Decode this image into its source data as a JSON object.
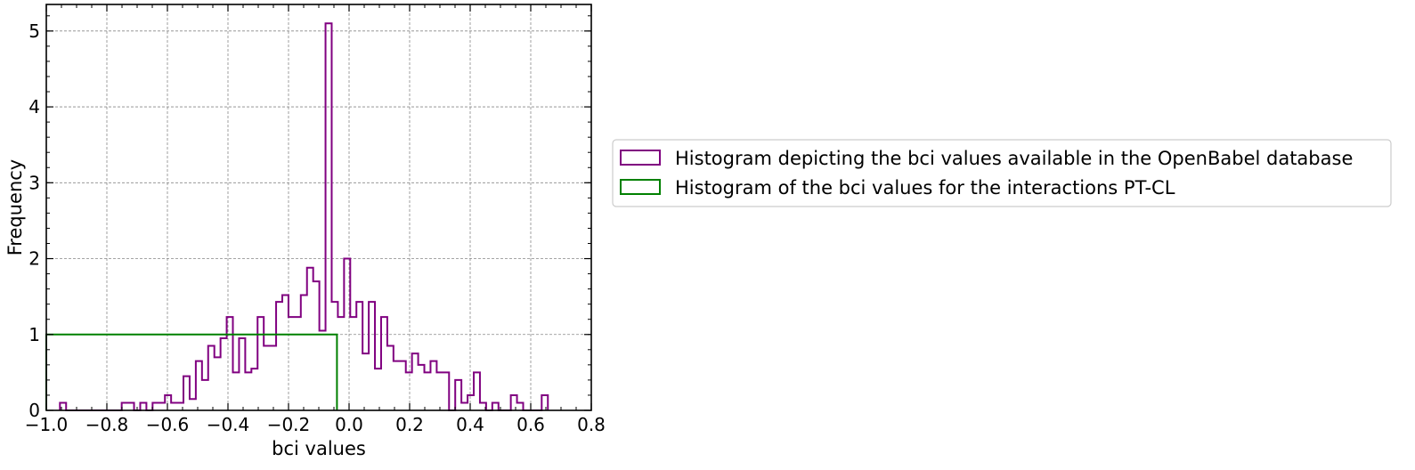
{
  "chart_data": {
    "type": "histogram",
    "title": "",
    "xlabel": "bci values",
    "ylabel": "Frequency",
    "xlim": [
      -1.0,
      0.8
    ],
    "ylim": [
      0,
      5.35
    ],
    "xticks": [
      -1.0,
      -0.8,
      -0.6,
      -0.4,
      -0.2,
      0.0,
      0.2,
      0.4,
      0.6,
      0.8
    ],
    "xtick_labels": [
      "−1.0",
      "−0.8",
      "−0.6",
      "−0.4",
      "−0.2",
      "0.0",
      "0.2",
      "0.4",
      "0.6",
      "0.8"
    ],
    "yticks": [
      0,
      1,
      2,
      3,
      4,
      5
    ],
    "ytick_labels": [
      "0",
      "1",
      "2",
      "3",
      "4",
      "5"
    ],
    "grid": true,
    "legend_position": "outside-right",
    "series": [
      {
        "name": "Histogram depicting the bci values available in the OpenBabel database",
        "color": "#800080",
        "histtype": "step",
        "bin_start": -0.955,
        "bin_width": 0.0204,
        "counts": [
          0.1,
          0,
          0,
          0,
          0,
          0,
          0,
          0,
          0,
          0,
          0.1,
          0.1,
          0,
          0.1,
          0,
          0.1,
          0.1,
          0.2,
          0.1,
          0.1,
          0.45,
          0.15,
          0.65,
          0.4,
          0.85,
          0.7,
          0.95,
          1.23,
          0.5,
          0.95,
          0.5,
          0.55,
          1.23,
          0.85,
          0.85,
          1.43,
          1.52,
          1.23,
          1.23,
          1.52,
          1.88,
          1.7,
          1.05,
          5.1,
          1.43,
          1.23,
          2.0,
          1.23,
          1.43,
          0.75,
          1.43,
          0.55,
          1.23,
          0.85,
          0.65,
          0.65,
          0.5,
          0.75,
          0.6,
          0.5,
          0.65,
          0.5,
          0.5,
          0,
          0.4,
          0.1,
          0.2,
          0.5,
          0.1,
          0,
          0.1,
          0,
          0,
          0.2,
          0.1,
          0,
          0,
          0,
          0.2
        ]
      },
      {
        "name": "Histogram of the bci values for the interactions PT-CL",
        "color": "#008000",
        "histtype": "step",
        "bin_edges": [
          -1.0,
          -0.04
        ],
        "counts": [
          1.0
        ]
      }
    ]
  }
}
